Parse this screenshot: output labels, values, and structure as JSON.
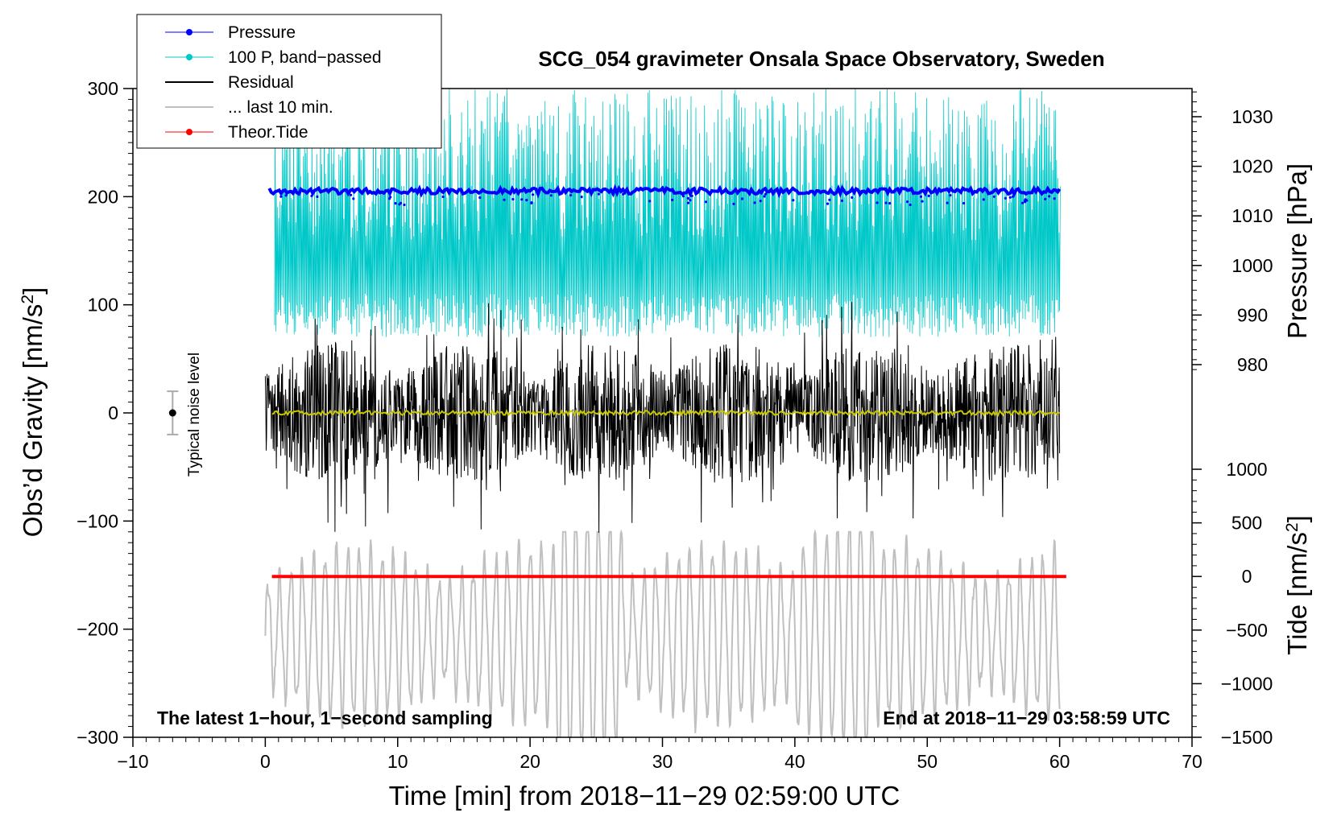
{
  "chart_data": {
    "type": "line",
    "title": "SCG_054 gravimeter Onsala Space Observatory, Sweden",
    "xlabel": "Time [min] from 2018−11−29 02:59:00 UTC",
    "ylabel_main": "Obs’d Gravity [nm/s",
    "ylabel_main_sup": "2",
    "ylabel_main_end": "]",
    "ylabel_pressure": "Pressure [hPa]",
    "ylabel_tide": "Tide [nm/s",
    "ylabel_tide_sup": "2",
    "ylabel_tide_end": "]",
    "xlim": [
      -10,
      70
    ],
    "ylim": [
      -300,
      300
    ],
    "x_ticks": [
      -10,
      0,
      10,
      20,
      30,
      40,
      50,
      60,
      70
    ],
    "x_tick_labels": [
      "−10",
      "0",
      "10",
      "20",
      "30",
      "40",
      "50",
      "60",
      "70"
    ],
    "y_ticks": [
      300,
      200,
      100,
      0,
      -100,
      -200,
      -300
    ],
    "y_tick_labels": [
      "300",
      "200",
      "100",
      "0",
      "−100",
      "−200",
      "−300"
    ],
    "pressure_ticks": [
      1030,
      1020,
      1010,
      1000,
      990,
      980
    ],
    "pressure_tick_labels": [
      "1030",
      "1020",
      "1010",
      "1000",
      "990",
      "980"
    ],
    "pressure_range": [
      975,
      1035
    ],
    "tide_ticks": [
      1000,
      500,
      0,
      -500,
      -1000,
      -1500
    ],
    "tide_tick_labels": [
      "1000",
      "500",
      "0",
      "−500",
      "−1000",
      "−1500"
    ],
    "tide_range": [
      -1500,
      1000
    ],
    "annotations": {
      "bottom_left": "The latest 1−hour, 1−second sampling",
      "bottom_right": "End at 2018−11−29 03:58:59 UTC",
      "noise_label": "Typical noise level"
    },
    "noise_bar": {
      "x": -7,
      "center": 0,
      "half_range": 20
    },
    "legend": {
      "position": "top-left",
      "entries": [
        {
          "label": "Pressure",
          "color": "#0000ff",
          "marker": true
        },
        {
          "label": "100 P, band−passed",
          "color": "#00c8c8",
          "marker": true
        },
        {
          "label": "Residual",
          "color": "#000000",
          "marker": false
        },
        {
          "label": "... last 10 min.",
          "color": "#c0c0c0",
          "marker": false
        },
        {
          "label": "Theor.Tide",
          "color": "#ff0000",
          "marker": true
        }
      ]
    },
    "series": [
      {
        "name": "Pressure",
        "color": "#0000ff",
        "unit": "hPa",
        "x_range": [
          0.3,
          60.0
        ],
        "mean": 1015
      },
      {
        "name": "100 P, band−passed",
        "color": "#00c8c8",
        "unit": "nm/s2",
        "x_range": [
          0.7,
          60.0
        ],
        "y_envelope": [
          70,
          300
        ]
      },
      {
        "name": "Residual",
        "color": "#000000",
        "unit": "nm/s2",
        "x_range": [
          0.0,
          60.0
        ],
        "y_envelope": [
          -130,
          140
        ]
      },
      {
        "name": "Residual smoothed",
        "color": "#c8c800",
        "unit": "nm/s2",
        "x_range": [
          0.5,
          60.0
        ],
        "mean": 0
      },
      {
        "name": "... last 10 min.",
        "color": "#c0c0c0",
        "unit": "nm/s2",
        "x_range": [
          0.0,
          60.0
        ],
        "y_envelope": [
          -300,
          -110
        ]
      },
      {
        "name": "Theor.Tide",
        "color": "#ff0000",
        "unit": "nm/s2",
        "x_range": [
          0.5,
          60.5
        ],
        "value": 0
      }
    ]
  }
}
